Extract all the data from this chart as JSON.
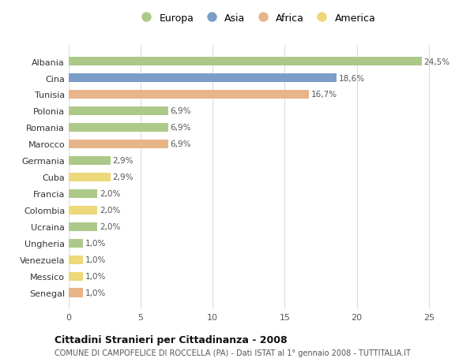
{
  "countries": [
    "Albania",
    "Cina",
    "Tunisia",
    "Polonia",
    "Romania",
    "Marocco",
    "Germania",
    "Cuba",
    "Francia",
    "Colombia",
    "Ucraina",
    "Ungheria",
    "Venezuela",
    "Messico",
    "Senegal"
  ],
  "values": [
    24.5,
    18.6,
    16.7,
    6.9,
    6.9,
    6.9,
    2.9,
    2.9,
    2.0,
    2.0,
    2.0,
    1.0,
    1.0,
    1.0,
    1.0
  ],
  "labels": [
    "24,5%",
    "18,6%",
    "16,7%",
    "6,9%",
    "6,9%",
    "6,9%",
    "2,9%",
    "2,9%",
    "2,0%",
    "2,0%",
    "2,0%",
    "1,0%",
    "1,0%",
    "1,0%",
    "1,0%"
  ],
  "colors": [
    "#adc98a",
    "#7a9ec8",
    "#e8b48a",
    "#adc98a",
    "#adc98a",
    "#e8b48a",
    "#adc98a",
    "#edd87a",
    "#adc98a",
    "#edd87a",
    "#adc98a",
    "#adc98a",
    "#edd87a",
    "#edd87a",
    "#e8b48a"
  ],
  "legend_labels": [
    "Europa",
    "Asia",
    "Africa",
    "America"
  ],
  "legend_colors": [
    "#adc98a",
    "#7a9ec8",
    "#e8b48a",
    "#edd87a"
  ],
  "title": "Cittadini Stranieri per Cittadinanza - 2008",
  "subtitle": "COMUNE DI CAMPOFELICE DI ROCCELLA (PA) - Dati ISTAT al 1° gennaio 2008 - TUTTITALIA.IT",
  "xlim": [
    0,
    26
  ],
  "xticks": [
    0,
    5,
    10,
    15,
    20,
    25
  ],
  "background_color": "#ffffff",
  "grid_color": "#dddddd",
  "bar_height": 0.55
}
